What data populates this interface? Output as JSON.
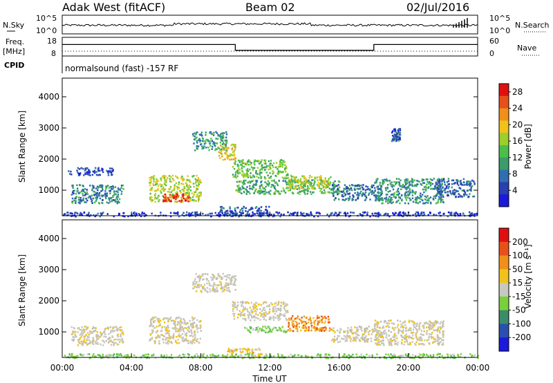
{
  "header": {
    "station": "Adak West (fitACF)",
    "beam": "Beam 02",
    "date": "02/Jul/2016"
  },
  "noise_panel": {
    "left_label": "N.Sky",
    "right_label": "N.Search",
    "left_ticks": [
      "10^5",
      "10^0"
    ],
    "right_ticks": [
      "10^5",
      "10^0"
    ]
  },
  "freq_panel": {
    "left_label_1": "Freq.",
    "left_label_2": "[MHz]",
    "left_ticks": [
      "18",
      "8"
    ],
    "right_ticks": [
      "60",
      "0"
    ],
    "right_label": "Nave",
    "cpid_label": "CPID",
    "cpid_text": "normalsound (fast) -157 RF",
    "freq_steps": [
      {
        "start": 0,
        "end": 10,
        "value": 14.5
      },
      {
        "start": 10,
        "end": 18,
        "value": 11.0
      },
      {
        "start": 18,
        "end": 24,
        "value": 14.5
      }
    ]
  },
  "chart_data": [
    {
      "type": "heatmap",
      "name": "power",
      "ylabel": "Slant Range [km]",
      "xlim": [
        0,
        24
      ],
      "ylim": [
        180,
        4600
      ],
      "yticks": [
        "1000",
        "2000",
        "3000",
        "4000"
      ],
      "colorbar": {
        "label": "Power [dB]",
        "ticks": [
          "4",
          "8",
          "12",
          "16",
          "20",
          "24",
          "28"
        ],
        "range": [
          0,
          30
        ],
        "colors": [
          "#1a1adc",
          "#2a3fb0",
          "#2f6fb0",
          "#3a9c6a",
          "#4cbf4a",
          "#9ccf2a",
          "#f0c21a",
          "#f0901a",
          "#e8501a",
          "#e01010"
        ]
      },
      "regions": [
        {
          "t0": 0.5,
          "t1": 3.5,
          "r0": 600,
          "r1": 1200,
          "level": 9
        },
        {
          "t0": 0.3,
          "t1": 3.0,
          "r0": 1500,
          "r1": 1750,
          "level": 5
        },
        {
          "t0": 5.0,
          "t1": 8.0,
          "r0": 650,
          "r1": 1500,
          "level": 17
        },
        {
          "t0": 5.8,
          "t1": 7.3,
          "r0": 650,
          "r1": 900,
          "level": 27
        },
        {
          "t0": 7.5,
          "t1": 9.5,
          "r0": 2300,
          "r1": 2900,
          "level": 10
        },
        {
          "t0": 9.0,
          "t1": 10.0,
          "r0": 2000,
          "r1": 2500,
          "level": 19
        },
        {
          "t0": 9.8,
          "t1": 13.0,
          "r0": 1400,
          "r1": 2000,
          "level": 14
        },
        {
          "t0": 10.0,
          "t1": 16.0,
          "r0": 900,
          "r1": 1350,
          "level": 12
        },
        {
          "t0": 13.0,
          "t1": 15.5,
          "r0": 1050,
          "r1": 1500,
          "level": 17
        },
        {
          "t0": 15.5,
          "t1": 18.5,
          "r0": 700,
          "r1": 1200,
          "level": 8
        },
        {
          "t0": 18.0,
          "t1": 22.0,
          "r0": 600,
          "r1": 1400,
          "level": 10
        },
        {
          "t0": 19.0,
          "t1": 19.5,
          "r0": 2600,
          "r1": 3000,
          "level": 6
        },
        {
          "t0": 21.5,
          "t1": 23.8,
          "r0": 800,
          "r1": 1400,
          "level": 7
        },
        {
          "t0": 9.0,
          "t1": 12.0,
          "r0": 180,
          "r1": 500,
          "level": 6
        },
        {
          "t0": 0.0,
          "t1": 24.0,
          "r0": 180,
          "r1": 320,
          "level": 4
        }
      ]
    },
    {
      "type": "heatmap",
      "name": "velocity",
      "ylabel": "Slant Range [km]",
      "xlabel": "Time UT",
      "xlim": [
        0,
        24
      ],
      "ylim": [
        180,
        4600
      ],
      "xticks": [
        "00:00",
        "04:00",
        "08:00",
        "12:00",
        "16:00",
        "20:00",
        "00:00"
      ],
      "yticks": [
        "1000",
        "2000",
        "3000",
        "4000"
      ],
      "colorbar": {
        "label": "Velocity [m s⁻¹]",
        "ticks": [
          "200",
          "100",
          "50",
          "15",
          "-15",
          "-50",
          "-100",
          "-200"
        ],
        "colors": [
          "#1a1adc",
          "#2a4fb0",
          "#3a8c6a",
          "#7ad03a",
          "#c8c8c0",
          "#f0c21a",
          "#f0901a",
          "#e8501a",
          "#e01010"
        ]
      },
      "regions": [
        {
          "t0": 0.5,
          "t1": 3.5,
          "r0": 600,
          "r1": 1200,
          "class": "grey"
        },
        {
          "t0": 5.0,
          "t1": 8.0,
          "r0": 650,
          "r1": 1500,
          "class": "grey"
        },
        {
          "t0": 7.5,
          "t1": 10.0,
          "r0": 2300,
          "r1": 2900,
          "class": "grey"
        },
        {
          "t0": 9.8,
          "t1": 13.0,
          "r0": 1400,
          "r1": 2000,
          "class": "grey"
        },
        {
          "t0": 10.5,
          "t1": 13.0,
          "r0": 1000,
          "r1": 1200,
          "class": "green"
        },
        {
          "t0": 13.0,
          "t1": 15.5,
          "r0": 1050,
          "r1": 1550,
          "class": "orange"
        },
        {
          "t0": 15.5,
          "t1": 18.5,
          "r0": 700,
          "r1": 1200,
          "class": "grey"
        },
        {
          "t0": 18.0,
          "t1": 22.0,
          "r0": 600,
          "r1": 1400,
          "class": "grey"
        },
        {
          "t0": 9.5,
          "t1": 11.5,
          "r0": 250,
          "r1": 500,
          "class": "yellow"
        },
        {
          "t0": 0.0,
          "t1": 24.0,
          "r0": 180,
          "r1": 320,
          "class": "green"
        }
      ]
    }
  ]
}
